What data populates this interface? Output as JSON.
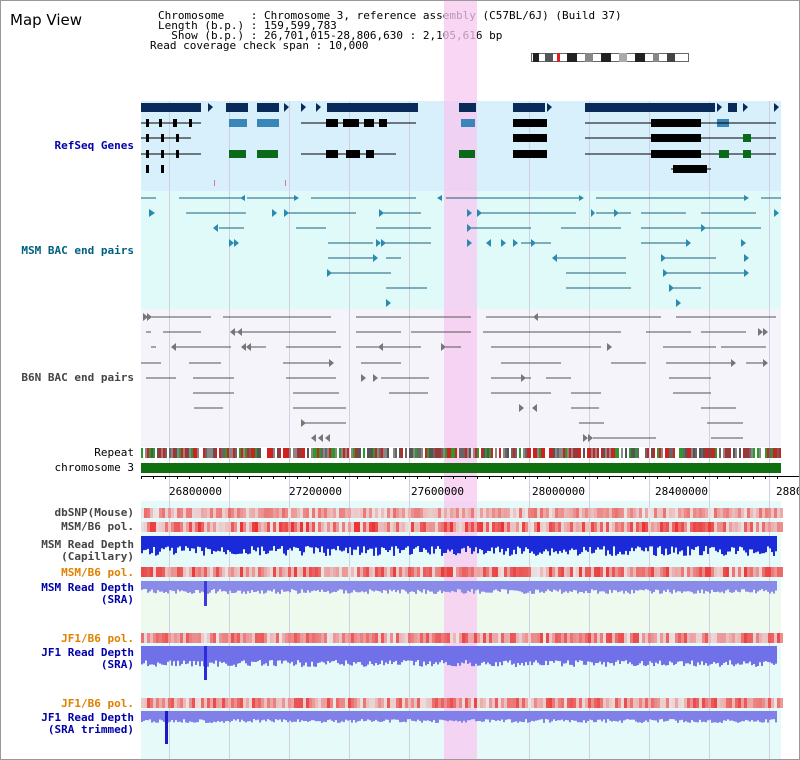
{
  "title": "Map View",
  "info": {
    "chromosome_line": "Chromosome    : Chromosome 3, reference assembly (C57BL/6J) (Build 37)",
    "length_line": "Length (b.p.) : 159,599,783",
    "show_line": "  Show (b.p.) : 26,701,015-28,806,630 : 2,105,616 bp",
    "coverage_line": "Read coverage check span : 10,000"
  },
  "tracks": {
    "refseq": "RefSeq Genes",
    "msm_bac": "MSM BAC end pairs",
    "b6n_bac": "B6N BAC end pairs",
    "repeat": "Repeat",
    "chromosome": "chromosome 3",
    "dbsnp": "dbSNP(Mouse)",
    "msm_b6_pol_1": "MSM/B6 pol.",
    "msm_read_depth_cap_1": "MSM Read Depth",
    "msm_read_depth_cap_2": "(Capillary)",
    "msm_b6_pol_2": "MSM/B6 pol.",
    "msm_read_depth_sra_1": "MSM Read Depth",
    "msm_read_depth_sra_2": "(SRA)",
    "jf1_b6_pol_1": "JF1/B6 pol.",
    "jf1_read_depth_sra_1": "JF1 Read Depth",
    "jf1_read_depth_sra_2": "(SRA)",
    "jf1_b6_pol_2": "JF1/B6 pol.",
    "jf1_read_depth_trim_1": "JF1 Read Depth",
    "jf1_read_depth_trim_2": "(SRA trimmed)"
  },
  "axis": {
    "ticks": [
      "26800000",
      "27200000",
      "27600000",
      "28000000",
      "28400000",
      "2880"
    ]
  },
  "colors": {
    "refseq_label": "#0000aa",
    "msm_label": "#006080",
    "b6n_label": "#444444",
    "orange_label": "#e08000",
    "blue_label": "#0000aa",
    "refseq_bg": "#d8f0fc",
    "bac_bg": "#e0fafa",
    "highlight": "#f7c8f0"
  }
}
